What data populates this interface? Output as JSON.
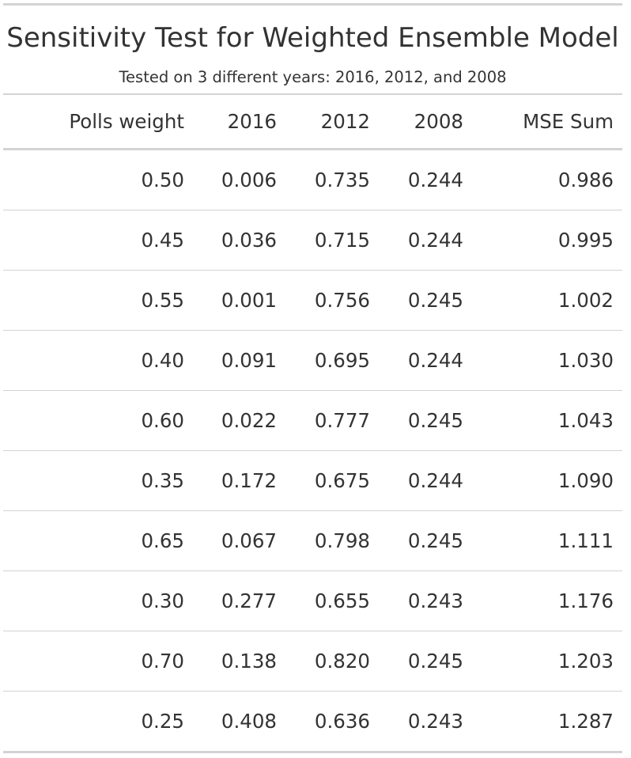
{
  "title": "Sensitivity Test for Weighted Ensemble Model",
  "subtitle": "Tested on 3 different years: 2016, 2012, and 2008",
  "columns": [
    "Polls weight",
    "2016",
    "2012",
    "2008",
    "MSE Sum"
  ],
  "rows": [
    [
      "0.50",
      "0.006",
      "0.735",
      "0.244",
      "0.986"
    ],
    [
      "0.45",
      "0.036",
      "0.715",
      "0.244",
      "0.995"
    ],
    [
      "0.55",
      "0.001",
      "0.756",
      "0.245",
      "1.002"
    ],
    [
      "0.40",
      "0.091",
      "0.695",
      "0.244",
      "1.030"
    ],
    [
      "0.60",
      "0.022",
      "0.777",
      "0.245",
      "1.043"
    ],
    [
      "0.35",
      "0.172",
      "0.675",
      "0.244",
      "1.090"
    ],
    [
      "0.65",
      "0.067",
      "0.798",
      "0.245",
      "1.111"
    ],
    [
      "0.30",
      "0.277",
      "0.655",
      "0.243",
      "1.176"
    ],
    [
      "0.70",
      "0.138",
      "0.820",
      "0.245",
      "1.203"
    ],
    [
      "0.25",
      "0.408",
      "0.636",
      "0.243",
      "1.287"
    ]
  ]
}
